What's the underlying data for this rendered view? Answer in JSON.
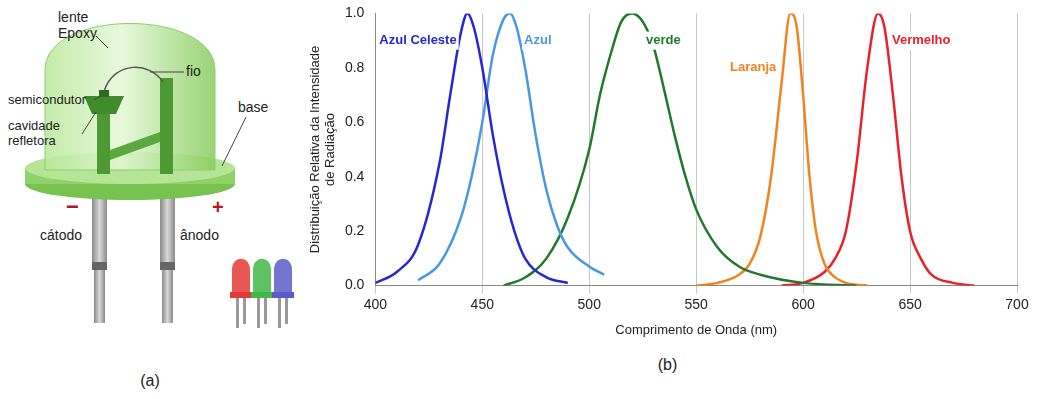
{
  "diagram": {
    "panel_label": "(a)",
    "labels": {
      "lens": "lente Epoxy",
      "wire": "fio",
      "chip": "semicondutor",
      "cavity": "cavidade refletora",
      "base": "base",
      "cathode": "cátodo",
      "anode": "ânodo",
      "minus": "−",
      "plus": "+"
    }
  },
  "chart_data": {
    "type": "line",
    "panel_label": "(b)",
    "x_label": "Comprimento de Onda (nm)",
    "y_label": "Distribuição Relativa da Intensidade de Radiação",
    "xlim": [
      400,
      700
    ],
    "xticks": [
      400,
      450,
      500,
      550,
      600,
      650,
      700
    ],
    "ylim": [
      0,
      1
    ],
    "yticks": [
      {
        "value": 0,
        "label": "0.0"
      },
      0.2,
      0.4,
      0.6,
      0.8,
      {
        "value": 1,
        "label": "1.0"
      }
    ],
    "grid": true,
    "series": [
      {
        "name": "Azul Celeste",
        "color": "#2626d4",
        "x": [
          400,
          410,
          420,
          430,
          435,
          440,
          443,
          446,
          450,
          455,
          460,
          465,
          470,
          480,
          490
        ],
        "values": [
          0.01,
          0.05,
          0.15,
          0.45,
          0.7,
          0.93,
          1.0,
          0.95,
          0.8,
          0.55,
          0.35,
          0.2,
          0.1,
          0.03,
          0.01
        ]
      },
      {
        "name": "Azul",
        "color": "#4a96e6",
        "x": [
          420,
          430,
          440,
          445,
          450,
          455,
          460,
          463,
          466,
          470,
          475,
          480,
          485,
          490,
          500,
          507
        ],
        "values": [
          0.02,
          0.08,
          0.25,
          0.4,
          0.6,
          0.85,
          0.98,
          1.0,
          0.95,
          0.8,
          0.55,
          0.35,
          0.22,
          0.14,
          0.07,
          0.04
        ]
      },
      {
        "name": "verde",
        "color": "#22782f",
        "x": [
          460,
          470,
          480,
          490,
          500,
          505,
          510,
          515,
          520,
          525,
          530,
          535,
          540,
          545,
          550,
          560,
          570,
          580,
          600,
          625
        ],
        "values": [
          0.0,
          0.03,
          0.1,
          0.25,
          0.5,
          0.7,
          0.85,
          0.97,
          1.0,
          0.97,
          0.88,
          0.72,
          0.55,
          0.4,
          0.28,
          0.14,
          0.07,
          0.04,
          0.01,
          0.0
        ]
      },
      {
        "name": "Laranja",
        "color": "#f5821f",
        "x": [
          550,
          560,
          570,
          575,
          580,
          585,
          590,
          594,
          597,
          600,
          603,
          606,
          610,
          615,
          620,
          630
        ],
        "values": [
          0.0,
          0.01,
          0.04,
          0.08,
          0.18,
          0.4,
          0.75,
          1.0,
          0.95,
          0.7,
          0.4,
          0.2,
          0.08,
          0.03,
          0.01,
          0.0
        ]
      },
      {
        "name": "Vermelho",
        "color": "#e8222b",
        "x": [
          590,
          600,
          610,
          615,
          620,
          625,
          630,
          635,
          638,
          642,
          646,
          650,
          655,
          660,
          670,
          680
        ],
        "values": [
          0.0,
          0.01,
          0.05,
          0.1,
          0.2,
          0.45,
          0.8,
          1.0,
          0.95,
          0.7,
          0.4,
          0.2,
          0.1,
          0.04,
          0.01,
          0.0
        ]
      }
    ]
  }
}
